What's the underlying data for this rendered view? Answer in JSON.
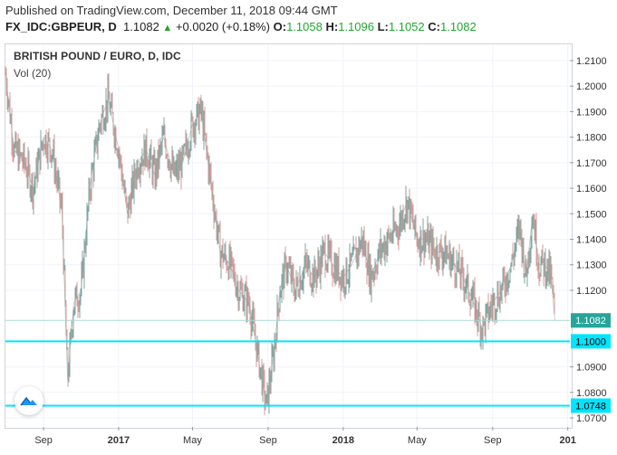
{
  "header": {
    "published": "Published on TradingView.com, December 11, 2018 09:44 GMT",
    "symbol": "FX_IDC:GBPEUR, D",
    "last": "1.1082",
    "change_arrow": "▲",
    "change": "+0.0020 (+0.18%)",
    "o_label": "O:",
    "o_val": "1.1058",
    "h_label": "H:",
    "h_val": "1.1096",
    "l_label": "L:",
    "l_val": "1.1052",
    "c_label": "C:",
    "c_val": "1.1082"
  },
  "legend": {
    "title": "BRITISH POUND / EURO, D, IDC",
    "volume": "Vol (20)"
  },
  "price_axis": {
    "ticks": [
      "1.2100",
      "1.2000",
      "1.1900",
      "1.1800",
      "1.1700",
      "1.1600",
      "1.1500",
      "1.1400",
      "1.1300",
      "1.1200",
      "1.0900",
      "1.0800",
      "1.0700"
    ],
    "tags": [
      {
        "value": "1.1082",
        "color": "#26a69a",
        "price": 1.1082
      },
      {
        "value": "1.1000",
        "color": "#00e5ff",
        "price": 1.1
      },
      {
        "value": "1.0748",
        "color": "#00e5ff",
        "price": 1.0748
      }
    ]
  },
  "time_axis": {
    "ticks": [
      {
        "label": "Sep",
        "bold": false
      },
      {
        "label": "2017",
        "bold": true
      },
      {
        "label": "May",
        "bold": false
      },
      {
        "label": "Sep",
        "bold": false
      },
      {
        "label": "2018",
        "bold": true
      },
      {
        "label": "May",
        "bold": false
      },
      {
        "label": "Sep",
        "bold": false
      },
      {
        "label": "201",
        "bold": true
      }
    ]
  },
  "chart_data": {
    "type": "line",
    "title": "BRITISH POUND / EURO, D, IDC",
    "ylim": [
      1.067,
      1.215
    ],
    "series": [
      {
        "name": "GBPEUR",
        "points": [
          [
            "2016-07-01",
            1.205
          ],
          [
            "2016-07-15",
            1.175
          ],
          [
            "2016-08-01",
            1.17
          ],
          [
            "2016-08-15",
            1.16
          ],
          [
            "2016-09-01",
            1.18
          ],
          [
            "2016-09-15",
            1.175
          ],
          [
            "2016-10-01",
            1.15
          ],
          [
            "2016-10-10",
            1.085
          ],
          [
            "2016-10-20",
            1.115
          ],
          [
            "2016-11-01",
            1.12
          ],
          [
            "2016-11-15",
            1.16
          ],
          [
            "2016-12-01",
            1.185
          ],
          [
            "2016-12-15",
            1.195
          ],
          [
            "2017-01-01",
            1.175
          ],
          [
            "2017-01-15",
            1.15
          ],
          [
            "2017-02-01",
            1.17
          ],
          [
            "2017-02-15",
            1.175
          ],
          [
            "2017-03-01",
            1.165
          ],
          [
            "2017-03-15",
            1.18
          ],
          [
            "2017-04-01",
            1.165
          ],
          [
            "2017-04-15",
            1.17
          ],
          [
            "2017-05-01",
            1.185
          ],
          [
            "2017-05-15",
            1.19
          ],
          [
            "2017-06-01",
            1.16
          ],
          [
            "2017-06-15",
            1.135
          ],
          [
            "2017-07-01",
            1.13
          ],
          [
            "2017-07-15",
            1.12
          ],
          [
            "2017-08-01",
            1.115
          ],
          [
            "2017-08-15",
            1.095
          ],
          [
            "2017-08-29",
            1.0748
          ],
          [
            "2017-09-10",
            1.095
          ],
          [
            "2017-09-20",
            1.12
          ],
          [
            "2017-10-01",
            1.13
          ],
          [
            "2017-10-15",
            1.12
          ],
          [
            "2017-11-01",
            1.13
          ],
          [
            "2017-11-15",
            1.125
          ],
          [
            "2017-12-01",
            1.135
          ],
          [
            "2017-12-15",
            1.13
          ],
          [
            "2018-01-01",
            1.125
          ],
          [
            "2018-01-15",
            1.13
          ],
          [
            "2018-02-01",
            1.14
          ],
          [
            "2018-02-15",
            1.125
          ],
          [
            "2018-03-01",
            1.135
          ],
          [
            "2018-03-15",
            1.14
          ],
          [
            "2018-04-01",
            1.145
          ],
          [
            "2018-04-15",
            1.155
          ],
          [
            "2018-05-01",
            1.14
          ],
          [
            "2018-05-15",
            1.14
          ],
          [
            "2018-06-01",
            1.135
          ],
          [
            "2018-06-15",
            1.135
          ],
          [
            "2018-07-01",
            1.13
          ],
          [
            "2018-07-15",
            1.125
          ],
          [
            "2018-08-01",
            1.115
          ],
          [
            "2018-08-15",
            1.105
          ],
          [
            "2018-09-01",
            1.115
          ],
          [
            "2018-09-15",
            1.12
          ],
          [
            "2018-10-01",
            1.13
          ],
          [
            "2018-10-15",
            1.145
          ],
          [
            "2018-10-25",
            1.125
          ],
          [
            "2018-11-05",
            1.15
          ],
          [
            "2018-11-15",
            1.13
          ],
          [
            "2018-11-25",
            1.13
          ],
          [
            "2018-12-05",
            1.125
          ],
          [
            "2018-12-11",
            1.1082
          ]
        ]
      }
    ],
    "hlines": [
      1.1,
      1.0748
    ],
    "colors": {
      "up": "#26a69a",
      "down": "#ef5350",
      "hline": "#00e5ff",
      "body": "#7f8f8f"
    }
  }
}
